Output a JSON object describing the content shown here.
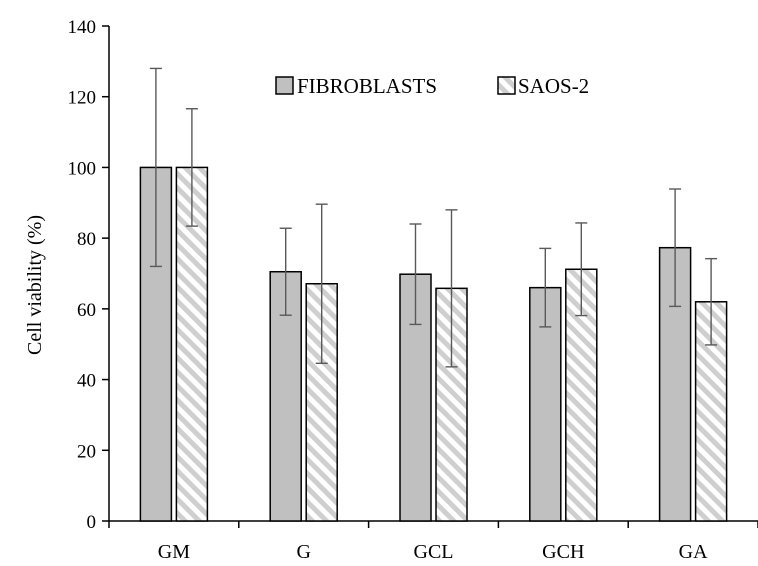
{
  "chart_data": {
    "type": "bar",
    "title": "",
    "xlabel": "",
    "ylabel": "Cell viability (%)",
    "ylim": [
      0,
      140
    ],
    "yticks": [
      0,
      20,
      40,
      60,
      80,
      100,
      120,
      140
    ],
    "categories": [
      "GM",
      "G",
      "GCL",
      "GCH",
      "GA"
    ],
    "grid": false,
    "legend_position": "top-center",
    "series": [
      {
        "name": "FIBROBLASTS",
        "values": [
          100,
          70.5,
          69.8,
          66,
          77.3
        ],
        "errors": [
          28,
          12.3,
          14.2,
          11.1,
          16.6
        ],
        "fill": "#c0c0c0",
        "pattern": "solid"
      },
      {
        "name": "SAOS-2",
        "values": [
          100,
          67.1,
          65.8,
          71.2,
          62
        ],
        "errors": [
          16.6,
          22.5,
          22.2,
          13.1,
          12.2
        ],
        "fill": "#f2f2f2",
        "pattern": "diagonal-hatch"
      }
    ]
  }
}
